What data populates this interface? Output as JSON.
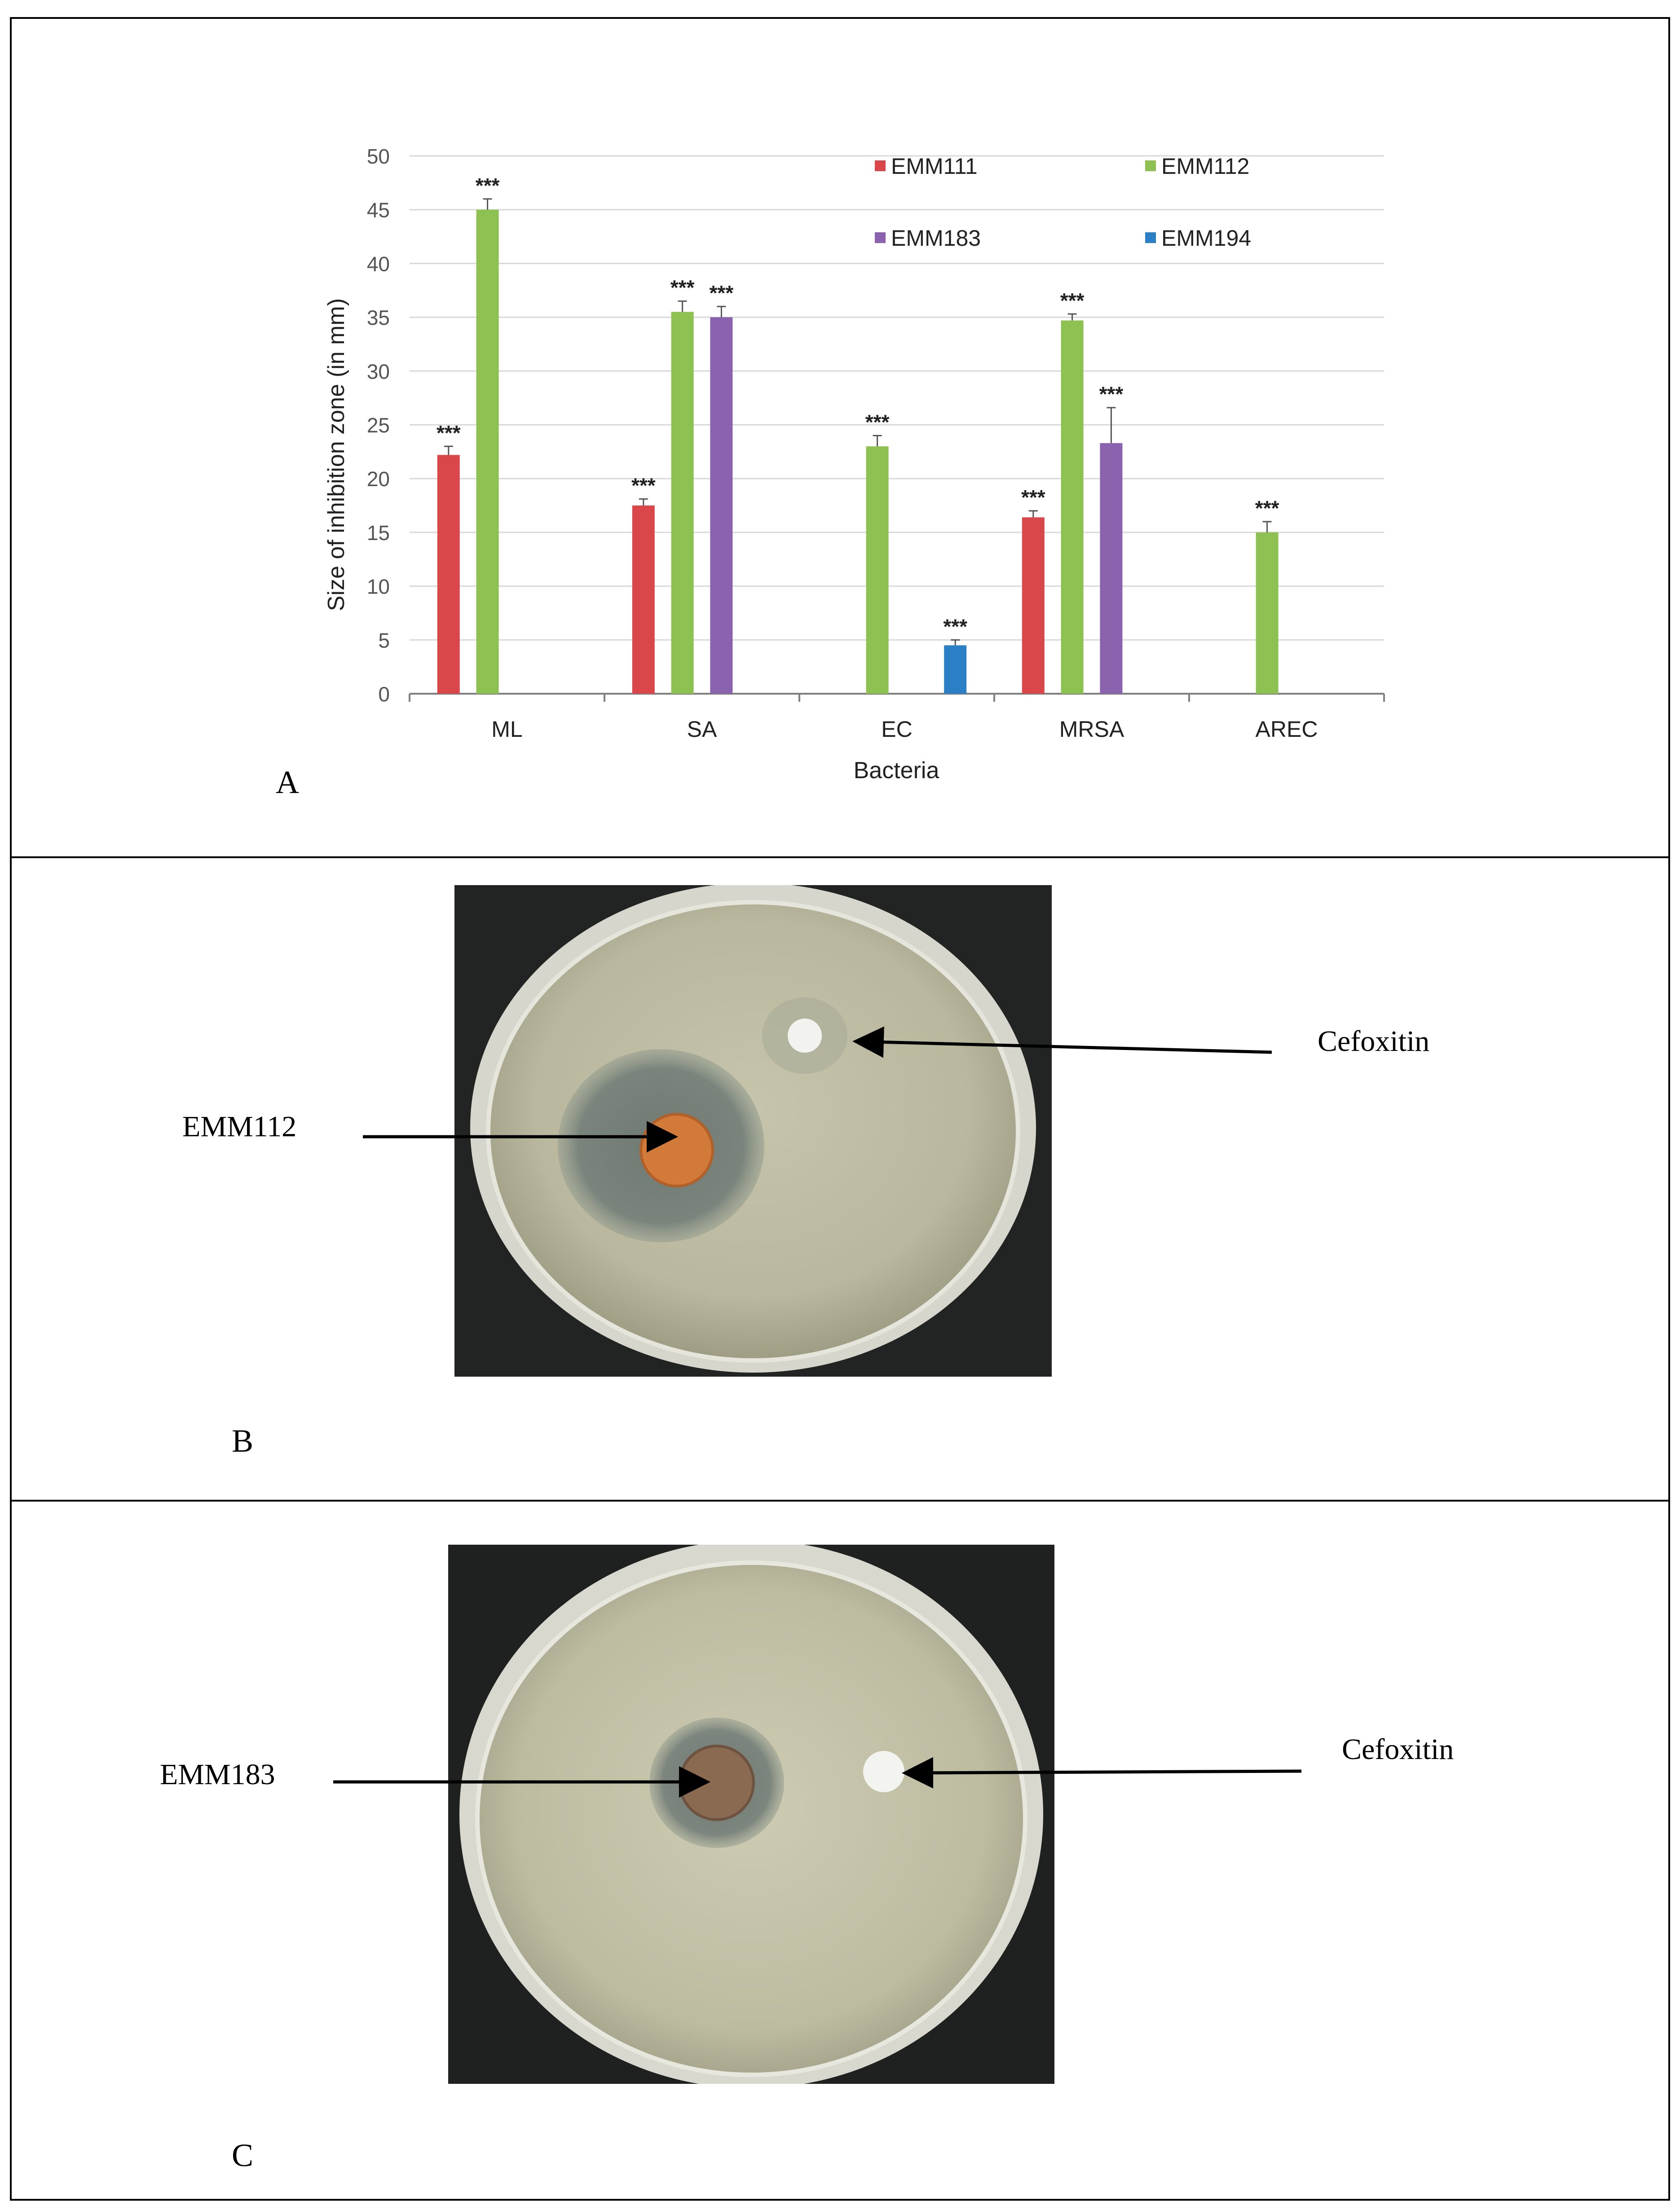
{
  "panels": {
    "a": {
      "letter": "A"
    },
    "b": {
      "letter": "B",
      "left_label": "EMM112",
      "right_label": "Cefoxitin"
    },
    "c": {
      "letter": "C",
      "left_label": "EMM183",
      "right_label": "Cefoxitin"
    }
  },
  "chart_data": {
    "type": "bar",
    "title": "",
    "xlabel": "Bacteria",
    "ylabel": "Size of inhibition zone (in mm)",
    "ylim": [
      0,
      50
    ],
    "yticks": [
      0,
      5,
      10,
      15,
      20,
      25,
      30,
      35,
      40,
      45,
      50
    ],
    "grid": true,
    "legend_position": "top-right",
    "categories": [
      "ML",
      "SA",
      "EC",
      "MRSA",
      "AREC"
    ],
    "series": [
      {
        "name": "EMM111",
        "color": "#d9474b",
        "values": [
          22.2,
          17.5,
          null,
          16.4,
          null
        ],
        "errors": [
          0.8,
          0.6,
          null,
          0.6,
          null
        ],
        "labels": [
          "***",
          "***",
          null,
          "***",
          null
        ]
      },
      {
        "name": "EMM112",
        "color": "#8dc152",
        "values": [
          45.0,
          35.5,
          23.0,
          34.7,
          15.0
        ],
        "errors": [
          1.0,
          1.0,
          1.0,
          0.6,
          1.0
        ],
        "labels": [
          "***",
          "***",
          "***",
          "***",
          "***"
        ]
      },
      {
        "name": "EMM183",
        "color": "#8a62ad",
        "values": [
          null,
          35.0,
          null,
          23.3,
          null
        ],
        "errors": [
          null,
          1.0,
          null,
          3.3,
          null
        ],
        "labels": [
          null,
          "***",
          null,
          "***",
          null
        ]
      },
      {
        "name": "EMM194",
        "color": "#2b7fc4",
        "values": [
          null,
          null,
          4.5,
          null,
          null
        ],
        "errors": [
          null,
          null,
          0.5,
          null,
          null
        ],
        "labels": [
          null,
          null,
          "***",
          null,
          null
        ]
      }
    ]
  }
}
